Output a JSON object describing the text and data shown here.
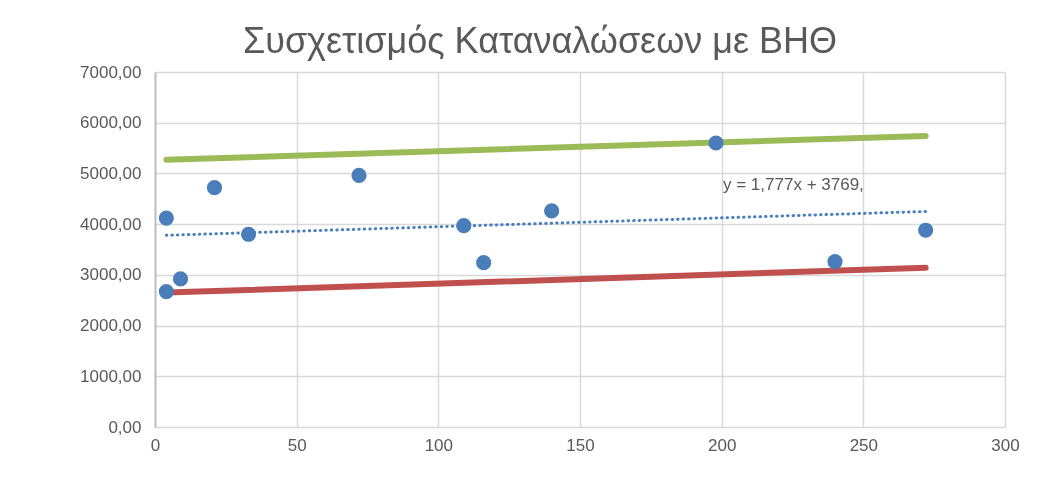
{
  "chart_data": {
    "type": "scatter",
    "title": "Συσχετισμός Καταναλώσεων με ΒΗΘ",
    "xlim": [
      0,
      300
    ],
    "xticks": [
      0,
      50,
      100,
      150,
      200,
      250,
      300
    ],
    "ylim": [
      0,
      7000
    ],
    "yticks": [
      {
        "value": 0,
        "label": "0,00"
      },
      {
        "value": 1000,
        "label": "1000,00"
      },
      {
        "value": 2000,
        "label": "2000,00"
      },
      {
        "value": 3000,
        "label": "3000,00"
      },
      {
        "value": 4000,
        "label": "4000,00"
      },
      {
        "value": 5000,
        "label": "5000,00"
      },
      {
        "value": 6000,
        "label": "6000,00"
      },
      {
        "value": 7000,
        "label": "7000,00"
      }
    ],
    "grid": true,
    "series": [
      {
        "marker": "circle",
        "color": "#4a7ebb",
        "x": [
          4,
          4,
          9,
          21,
          33,
          72,
          109,
          116,
          140,
          198,
          240,
          272
        ],
        "values": [
          4120,
          2670,
          2920,
          4720,
          3800,
          4960,
          3970,
          3240,
          4260,
          5600,
          3260,
          3880
        ]
      },
      {
        "type": "line",
        "marker": "none",
        "color": "#9bbb59",
        "line_style": "solid",
        "x": [
          4,
          272
        ],
        "values": [
          5270,
          5740
        ]
      },
      {
        "type": "line",
        "marker": "none",
        "color": "#c0504d",
        "line_style": "solid",
        "x": [
          4,
          272
        ],
        "values": [
          2650,
          3140
        ]
      },
      {
        "type": "line",
        "marker": "none",
        "color": "#4a7ebb",
        "line_style": "dotted",
        "x": [
          4,
          272
        ],
        "values": [
          3780,
          4250
        ]
      }
    ],
    "annotations": [
      "y = 1,777x + 3769,"
    ]
  }
}
